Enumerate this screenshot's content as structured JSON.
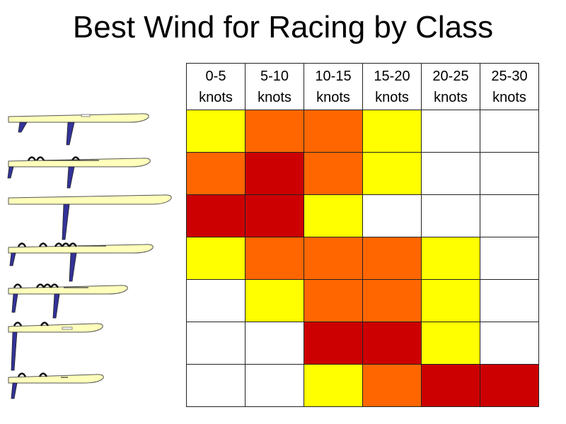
{
  "title": "Best Wind for Racing by Class",
  "colors": {
    "none": "#ffffff",
    "yellow": "#ffff00",
    "orange": "#ff6600",
    "red": "#cc0000",
    "board_fill": "#ffffbb",
    "fin_fill": "#333399"
  },
  "columns": [
    {
      "range": "0-5",
      "unit": "knots"
    },
    {
      "range": "5-10",
      "unit": "knots"
    },
    {
      "range": "10-15",
      "unit": "knots"
    },
    {
      "range": "15-20",
      "unit": "knots"
    },
    {
      "range": "20-25",
      "unit": "knots"
    },
    {
      "range": "25-30",
      "unit": "knots"
    }
  ],
  "rows": [
    [
      "yellow",
      "orange",
      "orange",
      "yellow",
      "none",
      "none"
    ],
    [
      "orange",
      "red",
      "orange",
      "yellow",
      "none",
      "none"
    ],
    [
      "red",
      "red",
      "yellow",
      "none",
      "none",
      "none"
    ],
    [
      "yellow",
      "orange",
      "orange",
      "orange",
      "yellow",
      "none"
    ],
    [
      "none",
      "yellow",
      "orange",
      "orange",
      "yellow",
      "none"
    ],
    [
      "none",
      "none",
      "red",
      "red",
      "yellow",
      "none"
    ],
    [
      "none",
      "none",
      "yellow",
      "orange",
      "red",
      "red"
    ]
  ]
}
